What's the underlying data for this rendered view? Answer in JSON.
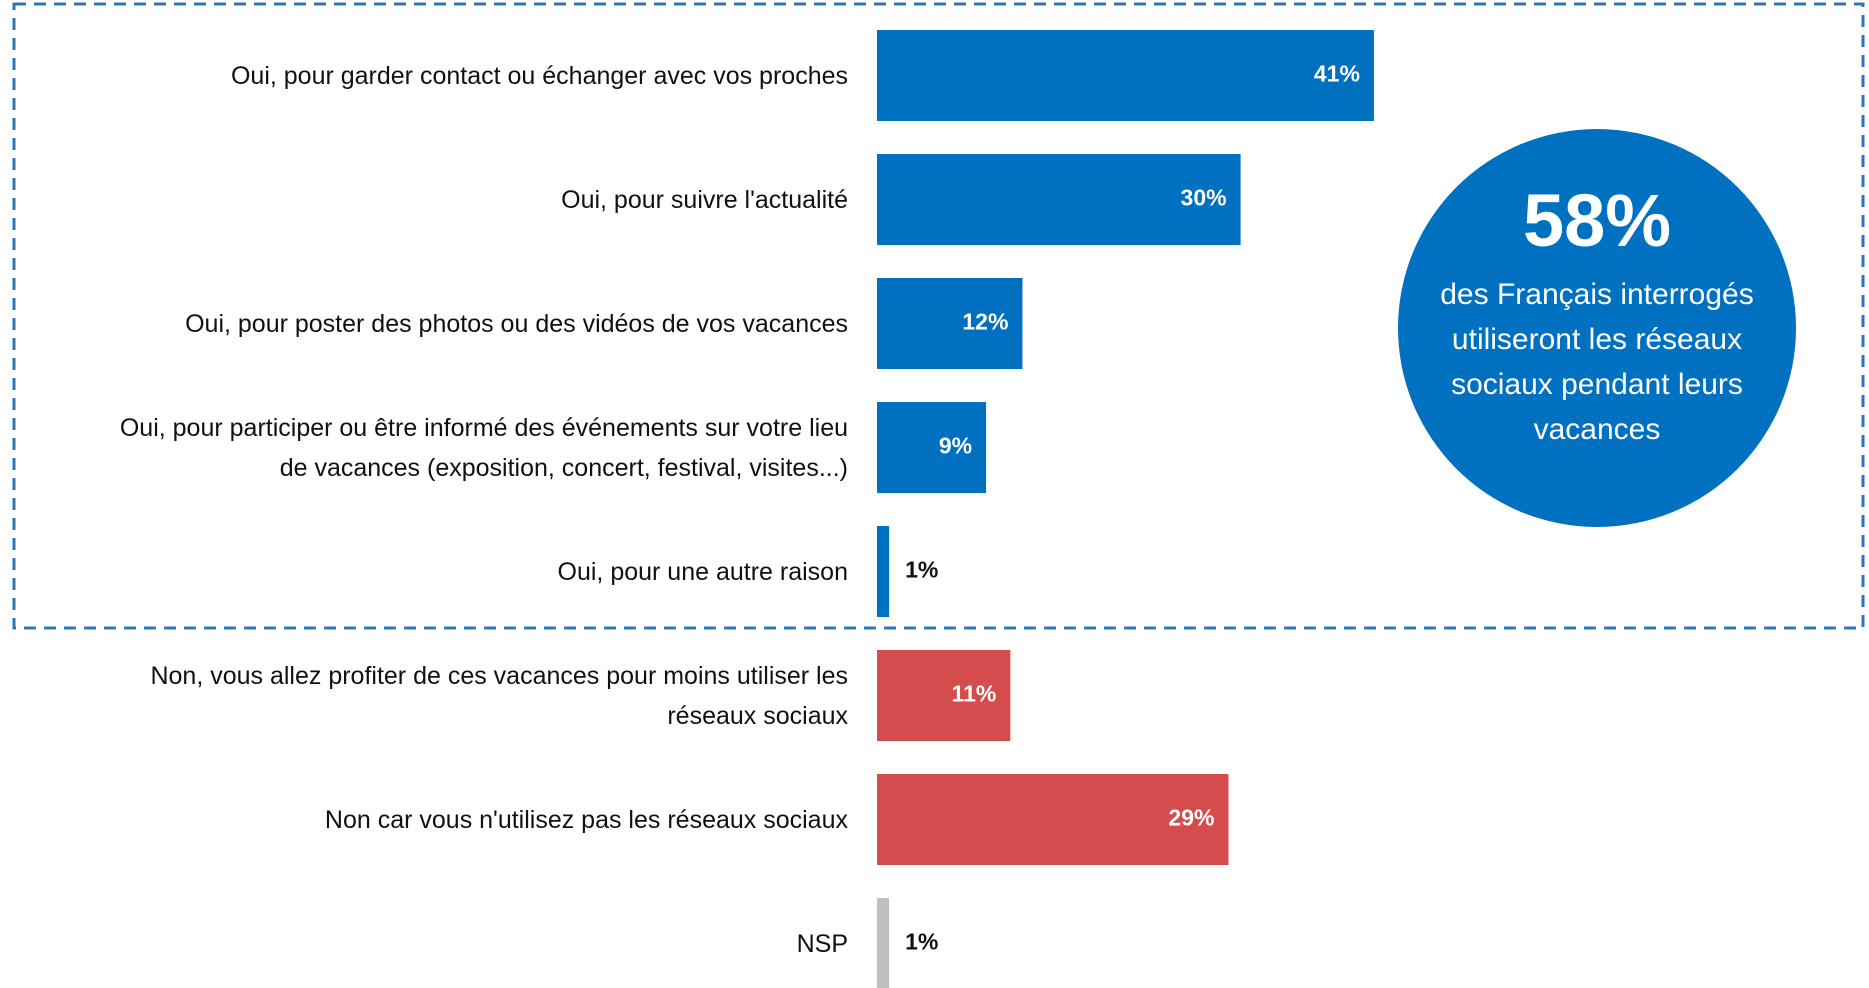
{
  "chart_data": {
    "type": "bar",
    "orientation": "horizontal",
    "categories": [
      "Oui, pour garder contact ou échanger avec vos proches",
      "Oui, pour suivre l'actualité",
      "Oui, pour poster des photos ou des vidéos de vos vacances",
      "Oui, pour participer ou être informé des événements sur votre lieu de vacances (exposition, concert, festival, visites...)",
      "Oui, pour une autre raison",
      "Non, vous allez profiter de ces vacances pour moins utiliser les réseaux sociaux",
      "Non car vous n'utilisez pas les réseaux sociaux",
      "NSP"
    ],
    "values": [
      41,
      30,
      12,
      9,
      1,
      11,
      29,
      1
    ],
    "value_labels": [
      "41%",
      "30%",
      "12%",
      "9%",
      "1%",
      "11%",
      "29%",
      "1%"
    ],
    "colors": [
      "#0070c0",
      "#0070c0",
      "#0070c0",
      "#0070c0",
      "#0070c0",
      "#d64b4b",
      "#d64b4b",
      "#bfbfbf"
    ],
    "callout": {
      "value": 58,
      "value_label": "58%",
      "text": "des Français interrogés utiliseront les réseaux sociaux pendant leurs vacances",
      "color": "#0070c0"
    }
  }
}
